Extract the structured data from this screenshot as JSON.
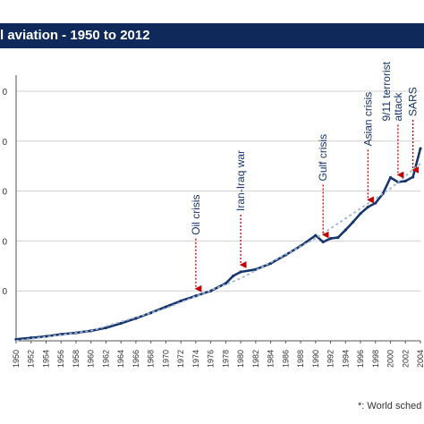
{
  "chart_data": {
    "type": "line",
    "title": "l aviation - 1950 to 2012",
    "xlabel": "",
    "ylabel": "",
    "x_ticks": [
      "1950",
      "1952",
      "1954",
      "1956",
      "1958",
      "1960",
      "1962",
      "1964",
      "1966",
      "1968",
      "1970",
      "1972",
      "1974",
      "1976",
      "1978",
      "1980",
      "1982",
      "1984",
      "1986",
      "1988",
      "1990",
      "1992",
      "1994",
      "1996",
      "1998",
      "2000",
      "2002",
      "2004"
    ],
    "y_ticks": [
      "0",
      "0",
      "0",
      "0",
      "0"
    ],
    "xlim": [
      1950,
      2004
    ],
    "ylim": [
      0,
      5.25
    ],
    "grid": true,
    "series": [
      {
        "x": [
          1950,
          1952,
          1954,
          1956,
          1958,
          1960,
          1962,
          1964,
          1966,
          1968,
          1970,
          1972,
          1974,
          1976,
          1978,
          1979,
          1980,
          1982,
          1984,
          1986,
          1988,
          1990,
          1991,
          1992,
          1993,
          1994,
          1995,
          1996,
          1997,
          1998,
          1999,
          2000,
          2001,
          2002,
          2003,
          2004
        ],
        "y": [
          0.03,
          0.06,
          0.09,
          0.13,
          0.16,
          0.2,
          0.26,
          0.35,
          0.45,
          0.56,
          0.68,
          0.8,
          0.9,
          1.0,
          1.15,
          1.3,
          1.38,
          1.43,
          1.55,
          1.72,
          1.9,
          2.11,
          1.98,
          2.05,
          2.07,
          2.22,
          2.38,
          2.55,
          2.68,
          2.76,
          2.95,
          3.27,
          3.18,
          3.2,
          3.28,
          3.85
        ]
      },
      {
        "x": [
          1950,
          1960,
          1970,
          1980,
          1990,
          2000,
          2004
        ],
        "y": [
          0.0,
          0.2,
          0.65,
          1.25,
          2.05,
          3.05,
          3.55
        ]
      }
    ],
    "annotations": [
      {
        "text": "Oil crisis",
        "x": 1974
      },
      {
        "text": "Iran-Iraq war",
        "x": 1980
      },
      {
        "text": "Gulf crisis",
        "x": 1991
      },
      {
        "text": "Asian crisis",
        "x": 1997
      },
      {
        "text": "9/11 terrorist attack",
        "lines": [
          "9/11 terrorist",
          "attack"
        ],
        "x": 2001
      },
      {
        "text": "SARS",
        "x": 2003
      }
    ]
  },
  "footnote": "*: World sched"
}
